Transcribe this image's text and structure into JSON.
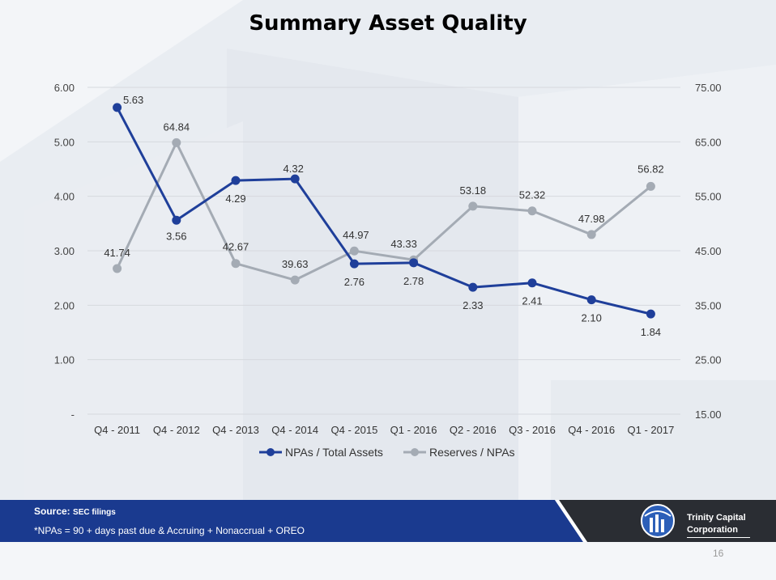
{
  "slide": {
    "title": "Summary Asset Quality",
    "source_label": "Source:",
    "source_value": "SEC filings",
    "footnote": "*NPAs = 90 + days past due & Accruing + Nonaccrual + OREO",
    "company_line1": "Trinity Capital",
    "company_line2": "Corporation",
    "page_number": "16"
  },
  "chart_data": {
    "type": "line",
    "title": "Summary Asset Quality",
    "categories": [
      "Q4 - 2011",
      "Q4 - 2012",
      "Q4 - 2013",
      "Q4 - 2014",
      "Q4 - 2015",
      "Q1 - 2016",
      "Q2 - 2016",
      "Q3 - 2016",
      "Q4 - 2016",
      "Q1 - 2017"
    ],
    "series": [
      {
        "name": "NPAs / Total Assets",
        "axis": "left",
        "color": "#1f3f9a",
        "values": [
          5.63,
          3.56,
          4.29,
          4.32,
          2.76,
          2.78,
          2.33,
          2.41,
          2.1,
          1.84
        ],
        "labels": [
          "5.63",
          "3.56",
          "4.29",
          "4.32",
          "2.76",
          "2.78",
          "2.33",
          "2.41",
          "2.10",
          "1.84"
        ]
      },
      {
        "name": "Reserves / NPAs",
        "axis": "right",
        "color": "#a4abb4",
        "values": [
          41.74,
          64.84,
          42.67,
          39.63,
          44.97,
          43.33,
          53.18,
          52.32,
          47.98,
          56.82
        ],
        "labels": [
          "41.74",
          "64.84",
          "42.67",
          "39.63",
          "44.97",
          "43.33",
          "53.18",
          "52.32",
          "47.98",
          "56.82"
        ]
      }
    ],
    "left_axis": {
      "ylim": [
        0,
        6
      ],
      "ticks": [
        0,
        1,
        2,
        3,
        4,
        5,
        6
      ],
      "tick_labels": [
        "-",
        "1.00",
        "2.00",
        "3.00",
        "4.00",
        "5.00",
        "6.00"
      ]
    },
    "right_axis": {
      "ylim": [
        15,
        75
      ],
      "ticks": [
        15,
        25,
        35,
        45,
        55,
        65,
        75
      ],
      "tick_labels": [
        "15.00",
        "25.00",
        "35.00",
        "45.00",
        "55.00",
        "65.00",
        "75.00"
      ]
    },
    "grid": true,
    "legend": "bottom"
  },
  "colors": {
    "navy": "#1f3f9a",
    "gray_series": "#a4abb4",
    "band_blue": "#1a3a8f",
    "band_dark": "#2a2d33"
  }
}
